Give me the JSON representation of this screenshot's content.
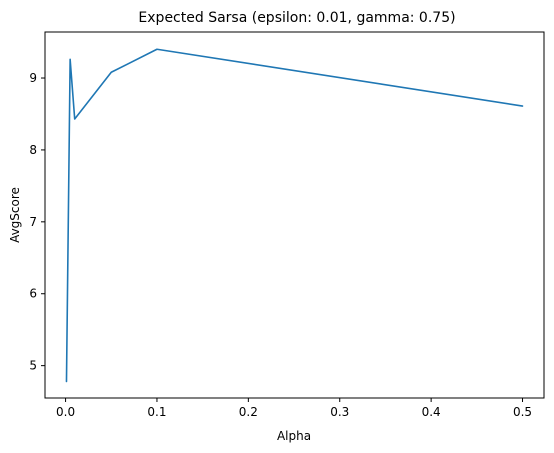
{
  "chart_data": {
    "type": "line",
    "title": "Expected Sarsa (epsilon: 0.01, gamma: 0.75)",
    "xlabel": "Alpha",
    "ylabel": "AvgScore",
    "xlim": [
      -0.0225,
      0.5235
    ],
    "ylim": [
      4.55,
      9.64
    ],
    "xticks": [
      0.0,
      0.1,
      0.2,
      0.3,
      0.4,
      0.5
    ],
    "xtick_labels": [
      "0.0",
      "0.1",
      "0.2",
      "0.3",
      "0.4",
      "0.5"
    ],
    "yticks": [
      5,
      6,
      7,
      8,
      9
    ],
    "ytick_labels": [
      "5",
      "6",
      "7",
      "8",
      "9"
    ],
    "grid": false,
    "series": [
      {
        "color": "#1f77b4",
        "x": [
          0.001,
          0.005,
          0.01,
          0.05,
          0.1,
          0.5
        ],
        "y": [
          4.78,
          9.26,
          8.43,
          9.08,
          9.4,
          8.61
        ]
      }
    ]
  }
}
